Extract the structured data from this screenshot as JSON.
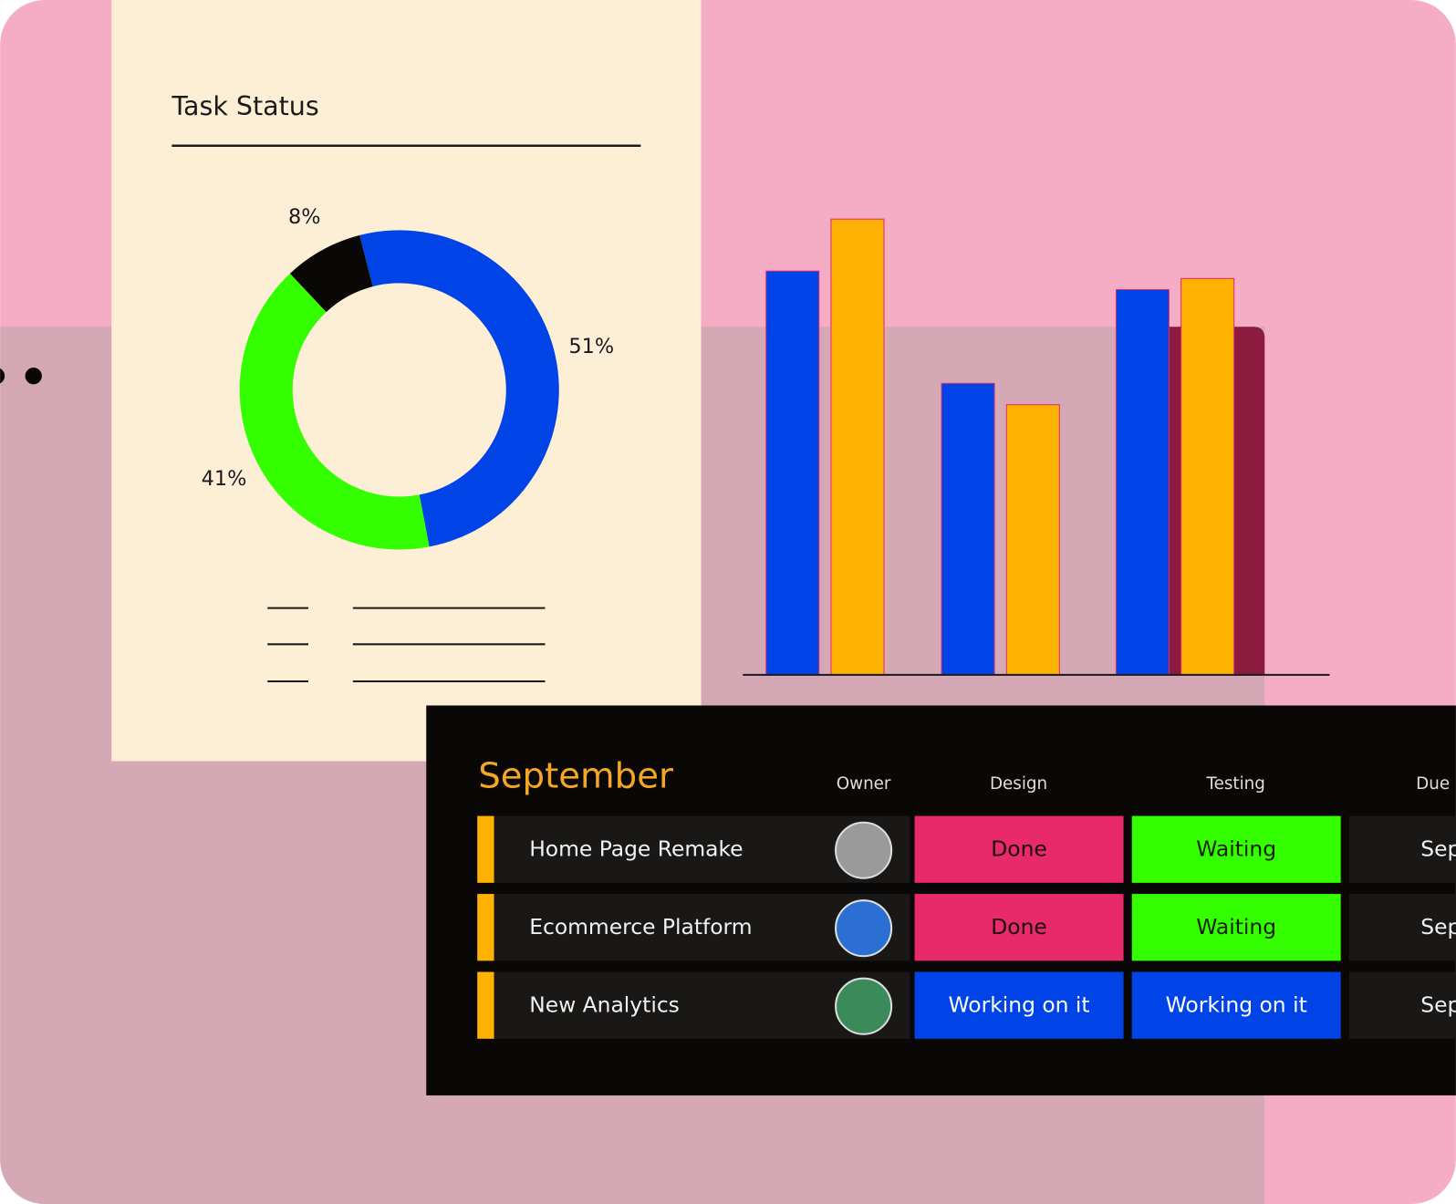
{
  "task_status": {
    "title": "Task Status",
    "chart_data": {
      "type": "pie",
      "values": [
        51,
        41,
        8
      ],
      "value_labels": [
        "51%",
        "41%",
        "8%"
      ],
      "colors": [
        "#0044e8",
        "#33ff00",
        "#0a0806"
      ]
    }
  },
  "bar_panel": {
    "chart_data": {
      "type": "bar",
      "categories": [
        null,
        null,
        null
      ],
      "series": [
        {
          "color": "#0044e8",
          "values": [
            435,
            314,
            415
          ]
        },
        {
          "color": "#fdb100",
          "values": [
            491,
            291,
            427
          ]
        }
      ],
      "ylim": [
        0,
        500
      ]
    }
  },
  "table": {
    "title": "September",
    "columns": [
      "Owner",
      "Design",
      "Testing",
      "Due"
    ],
    "rows": [
      {
        "name": "Home Page Remake",
        "design": {
          "text": "Done",
          "color": "#e8296a",
          "text_color": "#1a0a10"
        },
        "testing": {
          "text": "Waiting",
          "color": "#33ff00",
          "text_color": "#10200a"
        },
        "due": "Sep"
      },
      {
        "name": "Ecommerce Platform",
        "design": {
          "text": "Done",
          "color": "#e8296a",
          "text_color": "#1a0a10"
        },
        "testing": {
          "text": "Waiting",
          "color": "#33ff00",
          "text_color": "#10200a"
        },
        "due": "Sep"
      },
      {
        "name": "New Analytics",
        "design": {
          "text": "Working on it",
          "color": "#0044e8",
          "text_color": "#ffffff"
        },
        "testing": {
          "text": "Working on it",
          "color": "#0044e8",
          "text_color": "#ffffff"
        },
        "due": "Sep"
      }
    ]
  }
}
